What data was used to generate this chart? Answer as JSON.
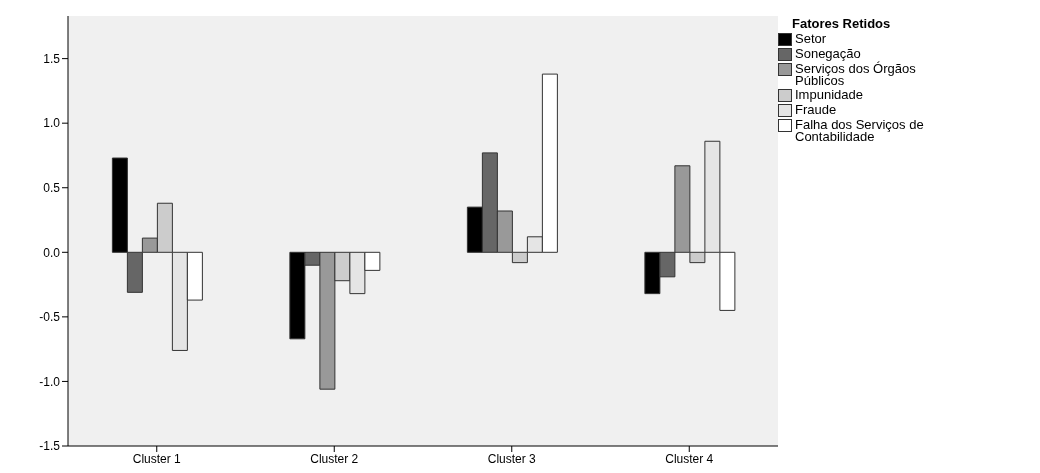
{
  "chart_data": {
    "type": "bar",
    "legend_title": "Fatores Retidos",
    "categories": [
      "Cluster 1",
      "Cluster 2",
      "Cluster 3",
      "Cluster 4"
    ],
    "series": [
      {
        "name": "Setor",
        "color": "#000000",
        "values": [
          0.73,
          -0.67,
          0.35,
          -0.32
        ]
      },
      {
        "name": "Sonegação",
        "color": "#666666",
        "values": [
          -0.31,
          -0.1,
          0.77,
          -0.19
        ]
      },
      {
        "name": "Serviços dos Órgãos Públicos",
        "color": "#999999",
        "values": [
          0.11,
          -1.06,
          0.32,
          0.67
        ]
      },
      {
        "name": "Impunidade",
        "color": "#cccccc",
        "values": [
          0.38,
          -0.22,
          -0.08,
          -0.08
        ]
      },
      {
        "name": "Fraude",
        "color": "#e5e5e5",
        "values": [
          -0.76,
          -0.32,
          0.12,
          0.86
        ]
      },
      {
        "name": "Falha dos Serviços de Contabilidade",
        "color": "#ffffff",
        "values": [
          -0.37,
          -0.14,
          1.38,
          -0.45
        ]
      }
    ],
    "ylim": [
      -1.5,
      1.83
    ],
    "yticks": [
      -1.5,
      {
        "value": -1,
        "label": "-1.0"
      },
      -0.5,
      {
        "value": 0,
        "label": "0.0"
      },
      0.5,
      {
        "value": 1,
        "label": "1.0"
      },
      1.5
    ],
    "grid": false,
    "legend": "top right"
  }
}
